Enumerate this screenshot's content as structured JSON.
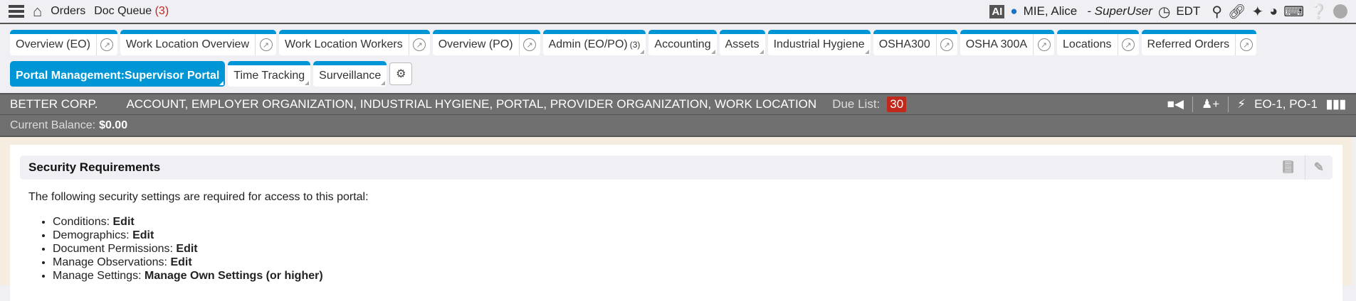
{
  "topbar": {
    "orders": "Orders",
    "doc_queue": "Doc Queue",
    "doc_queue_count": "(3)",
    "ai": "AI",
    "user": "MIE, Alice",
    "role": "- SuperUser",
    "timezone": "EDT"
  },
  "tabs_row1": [
    {
      "label": "Overview (EO)",
      "popout": true,
      "dropdown": false
    },
    {
      "label": "Work Location Overview",
      "popout": true,
      "dropdown": false
    },
    {
      "label": "Work Location Workers",
      "popout": true,
      "dropdown": false
    },
    {
      "label": "Overview (PO)",
      "popout": true,
      "dropdown": false
    },
    {
      "label": "Admin (EO/PO)",
      "count": "(3)",
      "popout": false,
      "dropdown": true
    },
    {
      "label": "Accounting",
      "popout": false,
      "dropdown": true
    },
    {
      "label": "Assets",
      "popout": false,
      "dropdown": true
    },
    {
      "label": "Industrial Hygiene",
      "popout": false,
      "dropdown": true
    },
    {
      "label": "OSHA300",
      "popout": true,
      "dropdown": false
    },
    {
      "label": "OSHA 300A",
      "popout": true,
      "dropdown": false
    },
    {
      "label": "Locations",
      "popout": true,
      "dropdown": false
    },
    {
      "label": "Referred Orders",
      "popout": true,
      "dropdown": false
    }
  ],
  "tabs_row2": [
    {
      "label": "Portal Management:Supervisor Portal",
      "active": true
    },
    {
      "label": "Time Tracking",
      "active": false
    },
    {
      "label": "Surveillance",
      "active": false
    }
  ],
  "context_bar": {
    "org": "BETTER CORP.",
    "types": "ACCOUNT, EMPLOYER ORGANIZATION, INDUSTRIAL HYGIENE, PORTAL, PROVIDER ORGANIZATION, WORK LOCATION",
    "due_list_label": "Due List:",
    "due_list_count": "30",
    "ids": "EO-1, PO-1"
  },
  "balance": {
    "label": "Current Balance:",
    "value": "$0.00"
  },
  "section": {
    "title": "Security Requirements",
    "intro": "The following security settings are required for access to this portal:",
    "items": [
      {
        "name": "Conditions:",
        "level": "Edit"
      },
      {
        "name": "Demographics:",
        "level": "Edit"
      },
      {
        "name": "Document Permissions:",
        "level": "Edit"
      },
      {
        "name": "Manage Observations:",
        "level": "Edit"
      },
      {
        "name": "Manage Settings:",
        "level": "Manage Own Settings (or higher)"
      }
    ]
  },
  "colors": {
    "tab_accent": "#0096d6",
    "badge": "#c0281c",
    "bar": "#707070",
    "content_bg": "#f5ede0"
  }
}
